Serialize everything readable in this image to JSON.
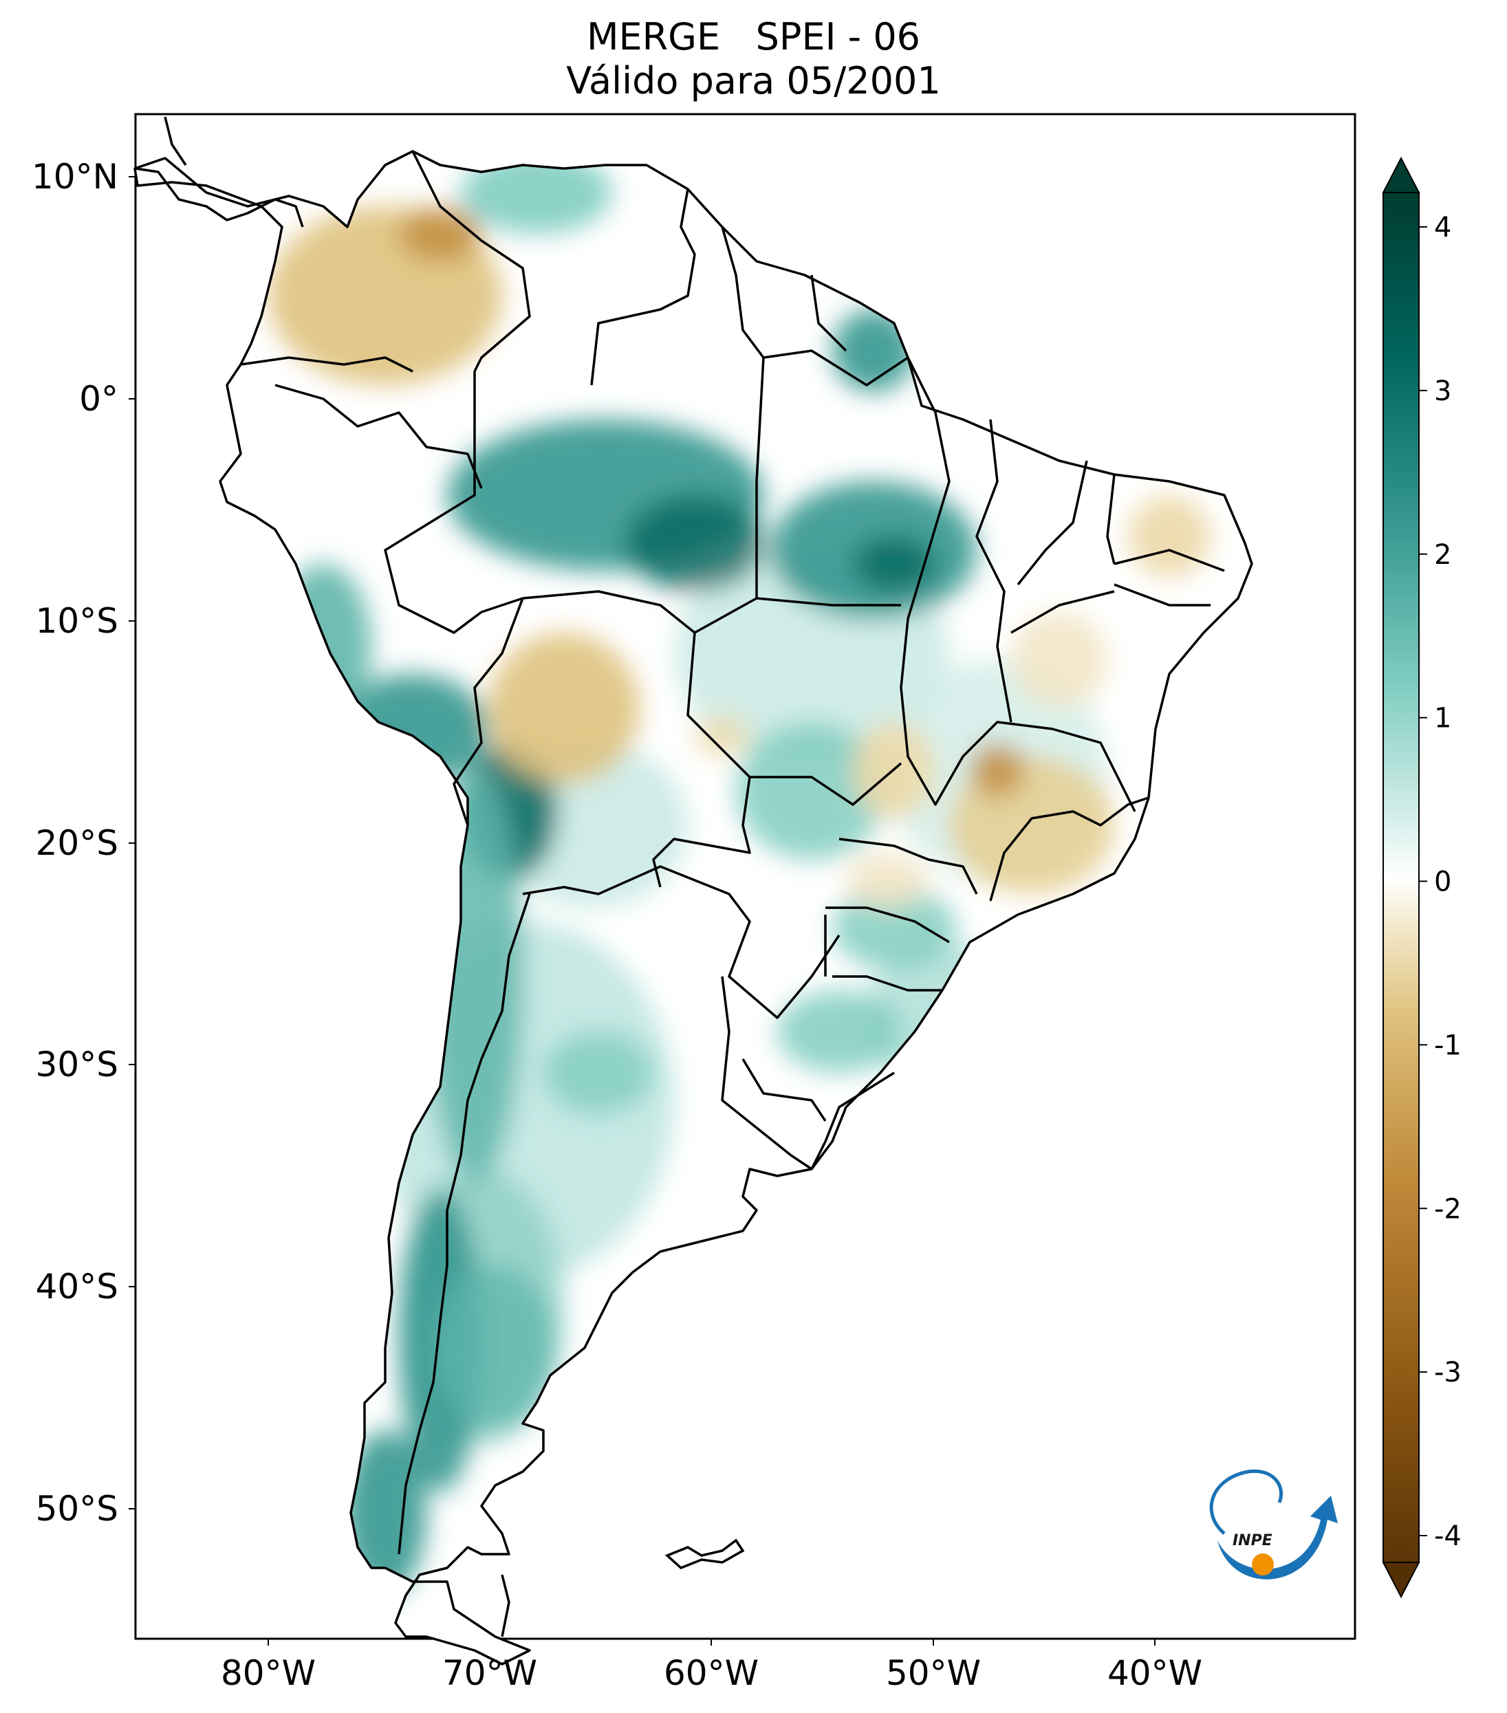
{
  "title": {
    "line1": "MERGE   SPEI - 06",
    "line2": "Válido para 05/2001"
  },
  "axes": {
    "lat_ticks": [
      "10°N",
      "0°",
      "10°S",
      "20°S",
      "30°S",
      "40°S",
      "50°S"
    ],
    "lon_ticks": [
      "80°W",
      "70°W",
      "60°W",
      "50°W",
      "40°W"
    ]
  },
  "colorbar": {
    "ticks": [
      "4",
      "3",
      "2",
      "1",
      "0",
      "-1",
      "-2",
      "-3",
      "-4"
    ],
    "colors": [
      "#5a3507",
      "#8a5511",
      "#bf8a3a",
      "#dfc27d",
      "#f2e6c6",
      "#ffffff",
      "#cfece7",
      "#80cdc1",
      "#35978f",
      "#01665e",
      "#003c30"
    ]
  },
  "logo": {
    "text": "INPE"
  },
  "regions": {
    "drought": [
      "Colombia / Venezuela",
      "Bolivia",
      "Minas Gerais",
      "Northeast Brazil coast"
    ],
    "wet": [
      "Amazonas",
      "Pará",
      "Peru Andes",
      "Chile / Argentina Andes",
      "Patagonia"
    ]
  }
}
